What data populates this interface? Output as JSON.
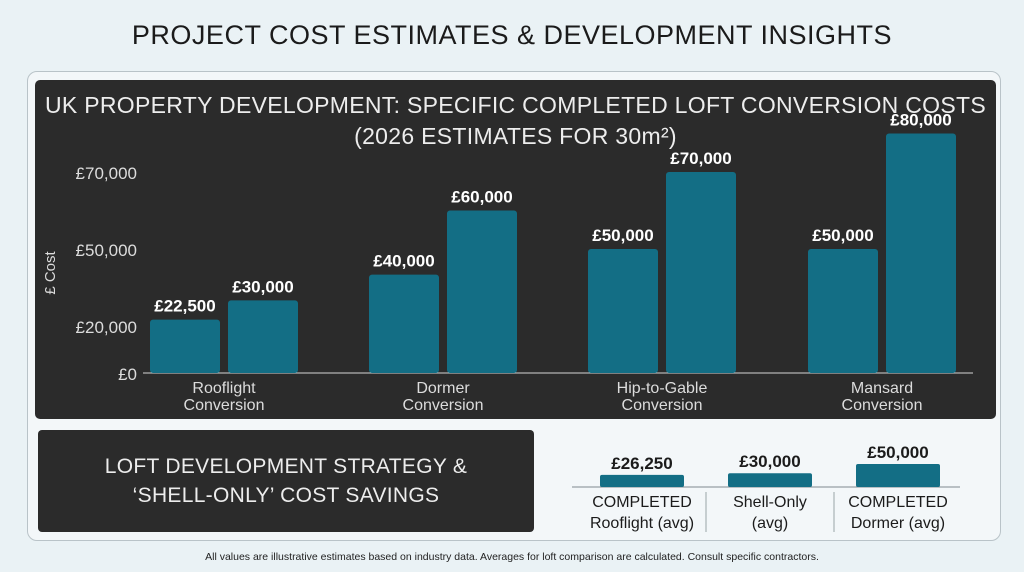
{
  "page": {
    "title": "PROJECT COST ESTIMATES & DEVELOPMENT INSIGHTS",
    "footnote": "All values are illustrative estimates based on industry data. Averages for loft comparison are calculated. Consult specific contractors."
  },
  "colors": {
    "bar": "#136e85",
    "panel": "#2b2b2b",
    "axis_text": "#dcdcdc",
    "label_text": "#ffffff"
  },
  "strategy": {
    "line1": "LOFT DEVELOPMENT STRATEGY &",
    "line2": "‘SHELL-ONLY’ COST SAVINGS"
  },
  "chart_data": [
    {
      "type": "bar",
      "title_line1": "UK PROPERTY DEVELOPMENT: SPECIFIC COMPLETED LOFT CONVERSION COSTS",
      "title_line2": "(2026 ESTIMATES FOR 30m²)",
      "ylabel": "£ Cost",
      "yticks": [
        "£0",
        "£20,000",
        "£50,000",
        "£70,000"
      ],
      "ytick_values": [
        0,
        20000,
        50000,
        70000
      ],
      "ylim": [
        0,
        80000
      ],
      "grid": false,
      "categories": [
        {
          "line1": "Rooflight",
          "line2": "Conversion"
        },
        {
          "line1": "Dormer",
          "line2": "Conversion"
        },
        {
          "line1": "Hip-to-Gable",
          "line2": "Conversion"
        },
        {
          "line1": "Mansard",
          "line2": "Conversion"
        }
      ],
      "series": [
        {
          "values": [
            22500,
            40000,
            50000,
            50000
          ],
          "labels": [
            "£22,500",
            "£40,000",
            "£50,000",
            "£50,000"
          ]
        },
        {
          "values": [
            30000,
            60000,
            70000,
            80000
          ],
          "labels": [
            "£30,000",
            "£60,000",
            "£70,000",
            "£80,000"
          ]
        }
      ]
    },
    {
      "type": "bar",
      "grid": false,
      "ylim": [
        0,
        50000
      ],
      "categories": [
        {
          "line1": "COMPLETED",
          "line2": "Rooflight (avg)"
        },
        {
          "line1": "Shell-Only",
          "line2": "(avg)"
        },
        {
          "line1": "COMPLETED",
          "line2": "Dormer (avg)"
        }
      ],
      "values": [
        26250,
        30000,
        50000
      ],
      "labels": [
        "£26,250",
        "£30,000",
        "£50,000"
      ]
    }
  ]
}
